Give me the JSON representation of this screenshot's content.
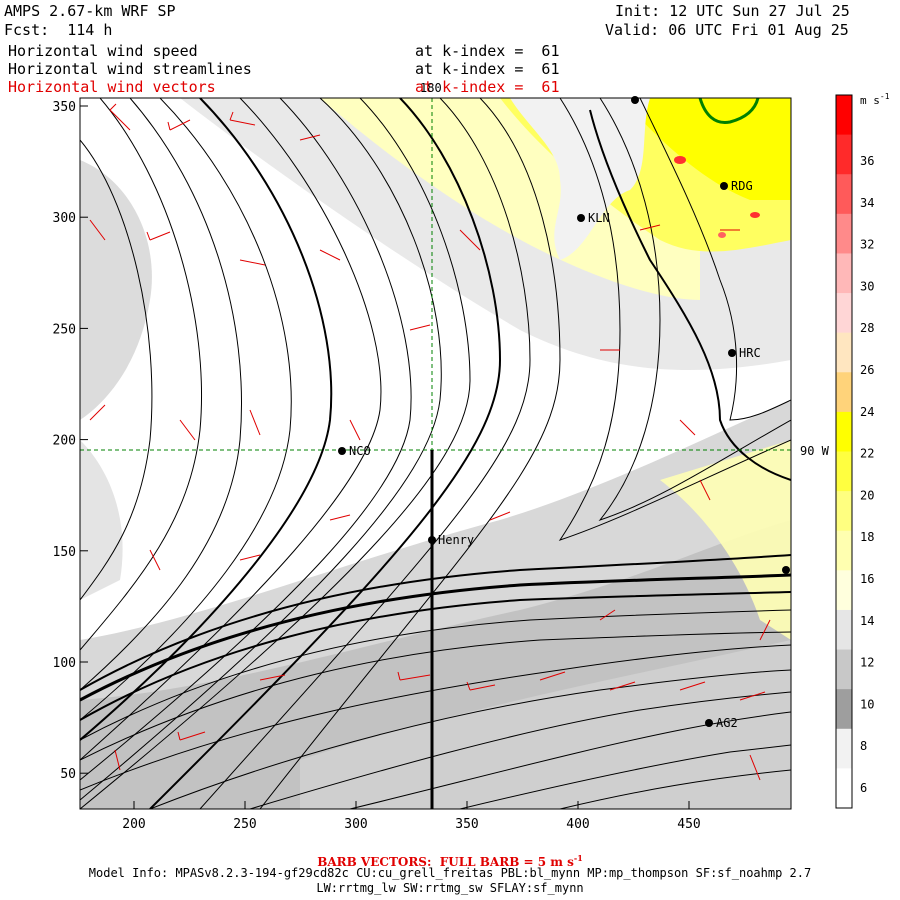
{
  "header": {
    "title": "AMPS 2.67-km WRF SP",
    "forecast": "Fcst:  114 h",
    "init": "Init: 12 UTC Sun 27 Jul 25",
    "valid": "Valid: 06 UTC Fri 01 Aug 25",
    "fields": [
      {
        "name": "Horizontal wind speed",
        "level": "at k-index =  61"
      },
      {
        "name": "Horizontal wind streamlines",
        "level": "at k-index =  61"
      },
      {
        "name": "Horizontal wind vectors",
        "level": "at k-index =  61"
      }
    ]
  },
  "map": {
    "x_ticks": [
      "200",
      "250",
      "300",
      "350",
      "400",
      "450"
    ],
    "y_ticks": [
      "350",
      "300",
      "250",
      "200",
      "150",
      "100",
      "50"
    ],
    "meridian_label": "180",
    "parallel_label": "90 W",
    "stations": [
      {
        "id": "NCO",
        "label": "NCO"
      },
      {
        "id": "Henry",
        "label": "Henry"
      },
      {
        "id": "KLN",
        "label": "KLN"
      },
      {
        "id": "RDG",
        "label": "RDG"
      },
      {
        "id": "HRC",
        "label": "HRC"
      },
      {
        "id": "AG2",
        "label": "AG2"
      }
    ]
  },
  "colorbar": {
    "unit_label": "m s",
    "unit_exp": "-1",
    "ticks": [
      "36",
      "34",
      "32",
      "30",
      "28",
      "26",
      "24",
      "22",
      "20",
      "18",
      "16",
      "14",
      "12",
      "10",
      "8",
      "6"
    ],
    "colors": [
      "#ff0000",
      "#ff2a2a",
      "#ff5a5a",
      "#ff8a8a",
      "#ffb8b8",
      "#ffd6d6",
      "#ffe6c0",
      "#ffd37a",
      "#ffff00",
      "#ffff40",
      "#ffff80",
      "#ffffb0",
      "#ffffdd",
      "#e6e6e6",
      "#c8c8c8",
      "#9e9e9e",
      "#f2f2f2",
      "#ffffff"
    ]
  },
  "footer": {
    "barb_note": "BARB VECTORS:  FULL BARB = 5 m s",
    "barb_exp": "-1",
    "model_info": "Model Info: MPASv8.2.3-194-gf29cd82c CU:cu_grell_freitas PBL:bl_mynn MP:mp_thompson SF:sf_noahmp 2.7",
    "model_info2": "LW:rrtmg_lw SW:rrtmg_sw SFLAY:sf_mynn"
  }
}
